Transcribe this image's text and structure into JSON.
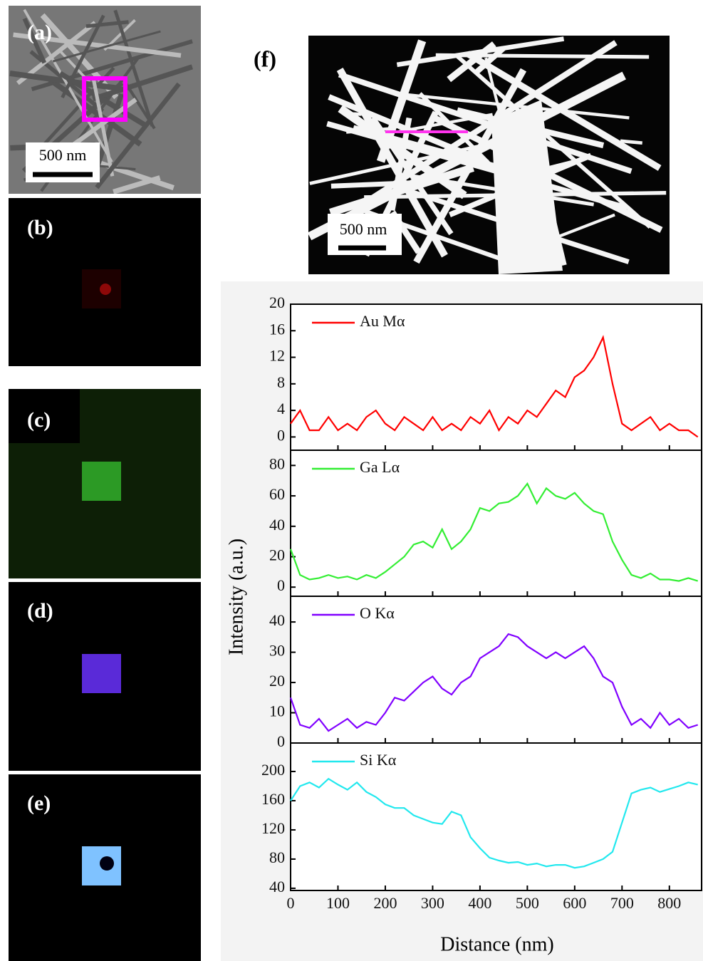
{
  "panels": {
    "a": "(a)",
    "b": "(b)",
    "c": "(c)",
    "d": "(d)",
    "e": "(e)",
    "f": "(f)",
    "scale_a": "500 nm",
    "scale_f": "500 nm"
  },
  "figure": {
    "xlabel": "Distance (nm)",
    "ylabel": "Intensity (a.u.)"
  },
  "chart_data": [
    {
      "type": "line",
      "xlim": [
        0,
        868
      ],
      "ylim": [
        -2,
        20
      ],
      "yticks": [
        0,
        4,
        8,
        12,
        16,
        20
      ],
      "x": [
        0,
        20,
        40,
        60,
        80,
        100,
        120,
        140,
        160,
        180,
        200,
        220,
        240,
        260,
        280,
        300,
        320,
        340,
        360,
        380,
        400,
        420,
        440,
        460,
        480,
        500,
        520,
        540,
        560,
        580,
        600,
        620,
        640,
        660,
        680,
        700,
        720,
        740,
        760,
        780,
        800,
        820,
        840,
        860
      ],
      "series": [
        {
          "name": "Au Mα",
          "color": "#ff0000",
          "values": [
            2,
            4,
            1,
            1,
            3,
            1,
            2,
            1,
            3,
            4,
            2,
            1,
            3,
            2,
            1,
            3,
            1,
            2,
            1,
            3,
            2,
            4,
            1,
            3,
            2,
            4,
            3,
            5,
            7,
            6,
            9,
            10,
            12,
            15,
            8,
            2,
            1,
            2,
            3,
            1,
            2,
            1,
            1,
            0
          ]
        }
      ]
    },
    {
      "type": "line",
      "xlim": [
        0,
        868
      ],
      "ylim": [
        -6,
        90
      ],
      "yticks": [
        0,
        20,
        40,
        60,
        80
      ],
      "x": [
        0,
        20,
        40,
        60,
        80,
        100,
        120,
        140,
        160,
        180,
        200,
        220,
        240,
        260,
        280,
        300,
        320,
        340,
        360,
        380,
        400,
        420,
        440,
        460,
        480,
        500,
        520,
        540,
        560,
        580,
        600,
        620,
        640,
        660,
        680,
        700,
        720,
        740,
        760,
        780,
        800,
        820,
        840,
        860
      ],
      "series": [
        {
          "name": "Ga Lα",
          "color": "#33ee33",
          "values": [
            25,
            8,
            5,
            6,
            8,
            6,
            7,
            5,
            8,
            6,
            10,
            15,
            20,
            28,
            30,
            26,
            38,
            25,
            30,
            38,
            52,
            50,
            55,
            56,
            60,
            68,
            55,
            65,
            60,
            58,
            62,
            55,
            50,
            48,
            30,
            18,
            8,
            6,
            9,
            5,
            5,
            4,
            6,
            4
          ]
        }
      ]
    },
    {
      "type": "line",
      "xlim": [
        0,
        868
      ],
      "ylim": [
        0,
        48.5
      ],
      "yticks": [
        0,
        10,
        20,
        30,
        40
      ],
      "x": [
        0,
        20,
        40,
        60,
        80,
        100,
        120,
        140,
        160,
        180,
        200,
        220,
        240,
        260,
        280,
        300,
        320,
        340,
        360,
        380,
        400,
        420,
        440,
        460,
        480,
        500,
        520,
        540,
        560,
        580,
        600,
        620,
        640,
        660,
        680,
        700,
        720,
        740,
        760,
        780,
        800,
        820,
        840,
        860
      ],
      "series": [
        {
          "name": "O Kα",
          "color": "#8000ff",
          "values": [
            15,
            6,
            5,
            8,
            4,
            6,
            8,
            5,
            7,
            6,
            10,
            15,
            14,
            17,
            20,
            22,
            18,
            16,
            20,
            22,
            28,
            30,
            32,
            36,
            35,
            32,
            30,
            28,
            30,
            28,
            30,
            32,
            28,
            22,
            20,
            12,
            6,
            8,
            5,
            10,
            6,
            8,
            5,
            6
          ]
        }
      ]
    },
    {
      "type": "line",
      "xlim": [
        0,
        868
      ],
      "ylim": [
        37,
        239
      ],
      "yticks": [
        40,
        80,
        120,
        160,
        200
      ],
      "xticks": [
        0,
        100,
        200,
        300,
        400,
        500,
        600,
        700,
        800
      ],
      "x": [
        0,
        20,
        40,
        60,
        80,
        100,
        120,
        140,
        160,
        180,
        200,
        220,
        240,
        260,
        280,
        300,
        320,
        340,
        360,
        380,
        400,
        420,
        440,
        460,
        480,
        500,
        520,
        540,
        560,
        580,
        600,
        620,
        640,
        660,
        680,
        700,
        720,
        740,
        760,
        780,
        800,
        820,
        840,
        860
      ],
      "series": [
        {
          "name": "Si Kα",
          "color": "#22e8ee",
          "values": [
            160,
            180,
            185,
            178,
            190,
            182,
            175,
            185,
            172,
            165,
            155,
            150,
            150,
            140,
            135,
            130,
            128,
            145,
            140,
            110,
            95,
            82,
            78,
            75,
            76,
            72,
            74,
            70,
            72,
            72,
            68,
            70,
            75,
            80,
            90,
            130,
            170,
            175,
            178,
            172,
            176,
            180,
            185,
            182
          ]
        }
      ]
    }
  ]
}
